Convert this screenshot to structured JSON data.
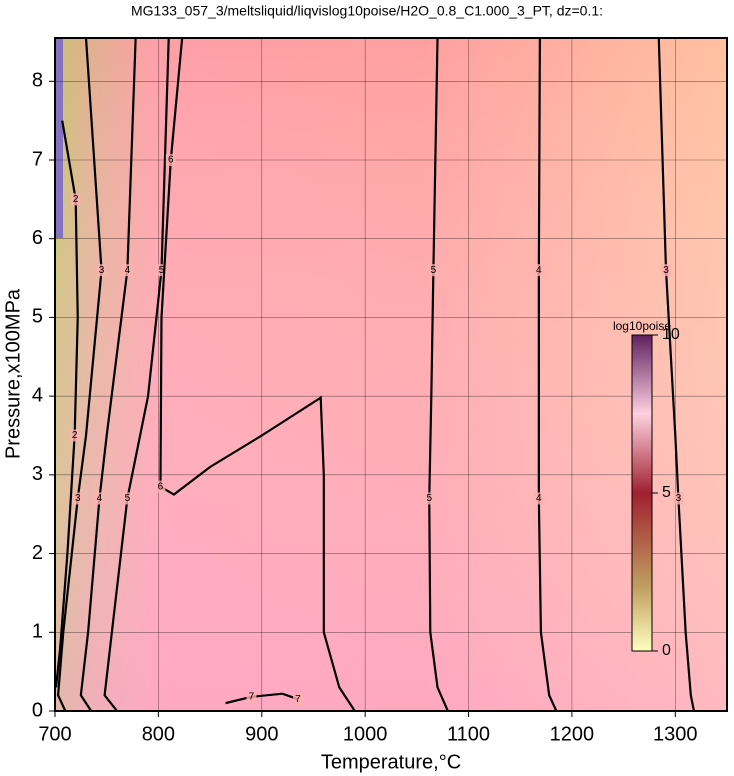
{
  "chart_data": {
    "type": "contour",
    "title": "MG133_057_3/meltsliquid/liqvislog10poise/H2O_0.8_C1.000_3_PT, dz=0.1:",
    "x_label": "Temperature,°C",
    "y_label": "Pressure,x100MPa",
    "xlim": [
      700,
      1350
    ],
    "ylim": [
      0,
      8.55
    ],
    "xticks": [
      700,
      800,
      900,
      1000,
      1100,
      1200,
      1300
    ],
    "yticks": [
      0,
      1,
      2,
      3,
      4,
      5,
      6,
      7,
      8
    ],
    "grid": true,
    "contours": [
      {
        "level": 2,
        "points": [
          [
            707,
            7.5
          ],
          [
            720,
            6.5
          ],
          [
            722,
            5.0
          ],
          [
            719,
            3.5
          ],
          [
            712,
            2.0
          ],
          [
            705,
            0.8
          ],
          [
            701,
            0.3
          ]
        ]
      },
      {
        "level": 3,
        "points": [
          [
            730,
            8.55
          ],
          [
            745,
            5.6
          ],
          [
            730,
            3.5
          ],
          [
            722,
            2.7
          ],
          [
            708,
            1.0
          ],
          [
            703,
            0.2
          ],
          [
            710,
            0
          ]
        ]
      },
      {
        "level": 4,
        "points": [
          [
            778,
            8.55
          ],
          [
            770,
            5.6
          ],
          [
            750,
            3.5
          ],
          [
            743,
            2.7
          ],
          [
            732,
            1.0
          ],
          [
            725,
            0.2
          ],
          [
            735,
            0
          ]
        ]
      },
      {
        "level": 5,
        "points": [
          [
            810,
            8.55
          ],
          [
            803,
            5.6
          ],
          [
            790,
            4.0
          ],
          [
            770,
            2.7
          ],
          [
            755,
            1.0
          ],
          [
            748,
            0.2
          ],
          [
            760,
            0
          ]
        ]
      },
      {
        "level": 6,
        "points": [
          [
            823,
            8.55
          ],
          [
            812,
            7.0
          ],
          [
            803,
            5.0
          ],
          [
            802,
            2.85
          ],
          [
            815,
            2.75
          ],
          [
            850,
            3.1
          ],
          [
            900,
            3.5
          ],
          [
            957,
            3.98
          ],
          [
            960,
            3.0
          ],
          [
            960,
            1.0
          ],
          [
            975,
            0.3
          ],
          [
            990,
            0
          ]
        ]
      },
      {
        "level": 7,
        "points": [
          [
            865,
            0.1
          ],
          [
            890,
            0.18
          ],
          [
            920,
            0.22
          ],
          [
            935,
            0.15
          ]
        ]
      },
      {
        "level": 5,
        "points": [
          [
            1070,
            8.55
          ],
          [
            1066,
            5.6
          ],
          [
            1064,
            4.0
          ],
          [
            1062,
            2.7
          ],
          [
            1063,
            1.0
          ],
          [
            1070,
            0.3
          ],
          [
            1080,
            0
          ]
        ]
      },
      {
        "level": 4,
        "points": [
          [
            1169,
            8.55
          ],
          [
            1168,
            5.6
          ],
          [
            1168,
            4.0
          ],
          [
            1168,
            2.7
          ],
          [
            1170,
            1.0
          ],
          [
            1178,
            0.2
          ],
          [
            1185,
            0
          ]
        ]
      },
      {
        "level": 3,
        "points": [
          [
            1284,
            8.55
          ],
          [
            1291,
            5.6
          ],
          [
            1300,
            3.5
          ],
          [
            1303,
            2.7
          ],
          [
            1310,
            1.0
          ],
          [
            1315,
            0.2
          ],
          [
            1318,
            0
          ]
        ]
      }
    ],
    "colorbar": {
      "title": "log10poise",
      "lim": [
        0,
        10
      ],
      "ticks": [
        0,
        5,
        10
      ]
    }
  }
}
